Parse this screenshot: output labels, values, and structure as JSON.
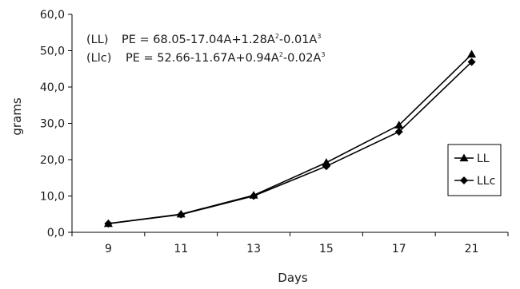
{
  "chart_data": {
    "type": "line",
    "categories": [
      "9",
      "11",
      "13",
      "15",
      "17",
      "21"
    ],
    "series": [
      {
        "name": "LL",
        "marker": "triangle",
        "values": [
          2.4,
          5.0,
          10.2,
          19.2,
          29.5,
          49.0
        ]
      },
      {
        "name": "LLc",
        "marker": "diamond",
        "values": [
          2.4,
          4.9,
          10.0,
          18.2,
          27.7,
          46.9
        ]
      }
    ],
    "xlabel": "Days",
    "ylabel": "grams",
    "ylim": [
      0,
      60
    ],
    "yticks": [
      "0,0",
      "10,0",
      "20,0",
      "30,0",
      "40,0",
      "50,0",
      "60,0"
    ],
    "legend_position": "right",
    "grid": false,
    "annotations": [
      {
        "prefix": "(LL)",
        "parts": [
          "PE = 68.05-17.04A+1.28A",
          "2",
          "-0.01A",
          "3"
        ]
      },
      {
        "prefix": "(Llc)",
        "parts": [
          "PE = 52.66-11.67A+0.94A",
          "2",
          "-0.02A",
          "3"
        ]
      }
    ],
    "colors": {
      "line": "#000000",
      "axis": "#000000"
    }
  }
}
